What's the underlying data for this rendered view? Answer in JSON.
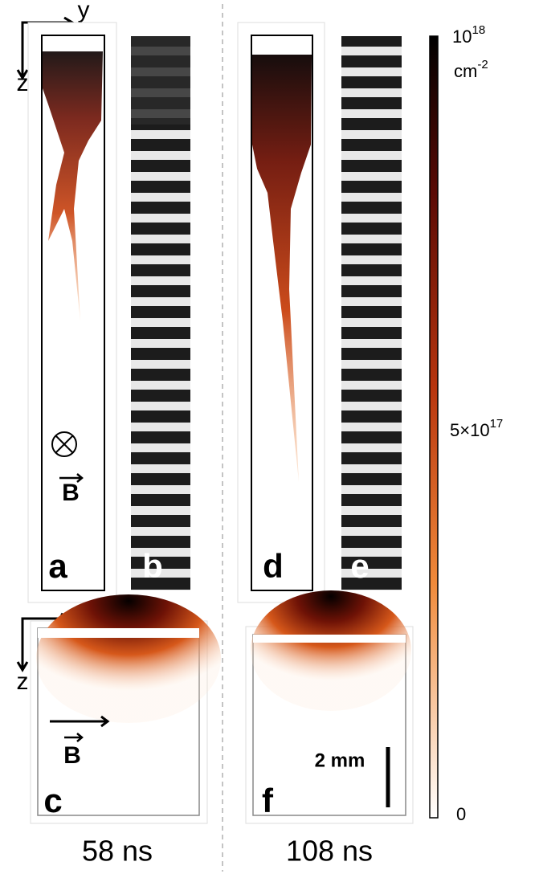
{
  "axes": {
    "top": {
      "horizontal": "y",
      "vertical": "z"
    },
    "bottom": {
      "horizontal": "x",
      "vertical": "z"
    }
  },
  "panel_labels": [
    "a",
    "b",
    "c",
    "d",
    "e",
    "f"
  ],
  "field_label": "B",
  "scale_bar": "2 mm",
  "colorbar": {
    "max": {
      "base": "10",
      "exp": "18"
    },
    "unit": {
      "base": "cm",
      "exp": "-2"
    },
    "mid": {
      "base": "5×10",
      "exp": "17"
    },
    "min": "0"
  },
  "times": [
    "58 ns",
    "108 ns"
  ]
}
